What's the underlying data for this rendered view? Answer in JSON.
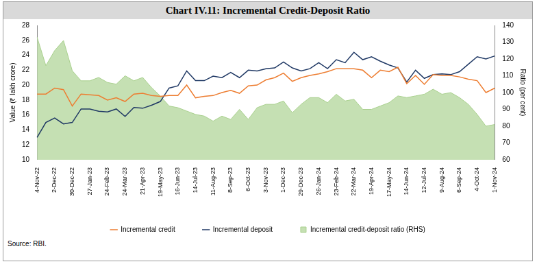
{
  "chart_data": {
    "type": "line",
    "title": "Chart IV.11: Incremental Credit-Deposit Ratio",
    "y_label": "Value (₹ lakh crore)",
    "y2_label": "Ratio (per cent)",
    "source": "Source: RBI.",
    "categories": [
      "4-Nov-22",
      null,
      "2-Dec-22",
      null,
      "30-Dec-22",
      null,
      "27-Jan-23",
      null,
      "24-Feb-23",
      null,
      "24-Mar-23",
      null,
      "21-Apr-23",
      null,
      "19-May-23",
      null,
      "16-Jun-23",
      null,
      "14-Jul-23",
      null,
      "11-Aug-23",
      null,
      "8-Sep-23",
      null,
      "6-Oct-23",
      null,
      "3-Nov-23",
      null,
      "1-Dec-23",
      null,
      "29-Dec-23",
      null,
      "26-Jan-24",
      null,
      "23-Feb-24",
      null,
      "22-Mar-24",
      null,
      "19-Apr-24",
      null,
      "17-May-24",
      null,
      "14-Jun-24",
      null,
      "12-Jul-24",
      null,
      "9-Aug-24",
      null,
      "6-Sep-24",
      null,
      "4-Oct-24",
      null,
      "1-Nov-24"
    ],
    "series": [
      {
        "name": "Incremental credit-deposit ratio (RHS)",
        "type": "area",
        "axis": "y2",
        "color": "#c5e0b3",
        "values": [
          133,
          116,
          125,
          131,
          113,
          107,
          107,
          109,
          106,
          105,
          110,
          107,
          109,
          103,
          98,
          92,
          91,
          89,
          87,
          86,
          83,
          86,
          84,
          90,
          84,
          91,
          93,
          93,
          95,
          88,
          93,
          97,
          97,
          94,
          99,
          95,
          96,
          90,
          90,
          92,
          94,
          98,
          97,
          98,
          99,
          102,
          99,
          100,
          97,
          93,
          87,
          80,
          81
        ]
      },
      {
        "name": "Incremental credit",
        "type": "line",
        "color": "#ed7d31",
        "values": [
          18.8,
          18.8,
          19.6,
          19.4,
          17.2,
          18.8,
          18.7,
          18.6,
          18.0,
          18.3,
          17.8,
          18.8,
          18.9,
          18.6,
          18.5,
          18.6,
          18.6,
          20.0,
          18.3,
          18.5,
          18.6,
          19.0,
          19.3,
          18.9,
          19.9,
          20.0,
          20.7,
          21.0,
          21.6,
          20.5,
          21.0,
          21.3,
          21.5,
          21.8,
          22.2,
          22.2,
          22.2,
          22.0,
          21.0,
          22.0,
          21.8,
          22.4,
          20.2,
          21.3,
          20.1,
          21.4,
          21.3,
          21.3,
          21.1,
          20.8,
          20.6,
          19.0,
          19.6
        ]
      },
      {
        "name": "Incremental deposit",
        "type": "line",
        "color": "#1f3864",
        "values": [
          13.0,
          15.0,
          15.6,
          14.8,
          15.0,
          16.8,
          16.8,
          16.5,
          16.4,
          16.8,
          15.8,
          17.0,
          16.9,
          17.3,
          17.8,
          19.6,
          19.9,
          21.9,
          20.6,
          20.6,
          21.2,
          21.0,
          21.7,
          21.0,
          22.0,
          21.9,
          22.2,
          22.3,
          23.1,
          22.3,
          21.9,
          22.2,
          23.0,
          22.2,
          23.4,
          23.0,
          24.4,
          23.4,
          23.8,
          23.2,
          22.7,
          22.3,
          20.4,
          22.0,
          20.9,
          21.4,
          21.5,
          21.4,
          21.8,
          22.8,
          23.8,
          23.5,
          23.9
        ]
      }
    ],
    "ylim": [
      10,
      28
    ],
    "yticks": [
      10,
      12,
      14,
      16,
      18,
      20,
      22,
      24,
      26,
      28
    ],
    "y2lim": [
      60,
      140
    ],
    "y2ticks": [
      60,
      70,
      80,
      90,
      100,
      110,
      120,
      130,
      140
    ],
    "grid": false,
    "legend": "bottom"
  }
}
